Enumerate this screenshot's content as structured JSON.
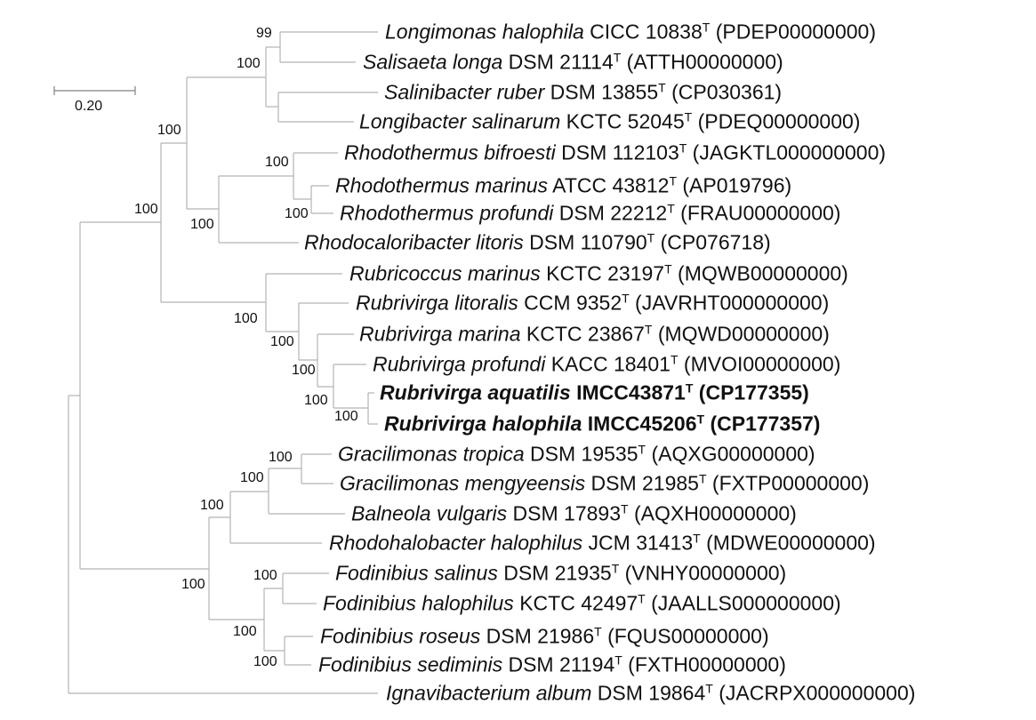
{
  "tree": {
    "scale_bar_label": "0.20",
    "branch_color": "#b4b4b4",
    "taxa": [
      {
        "id": "longimonas",
        "species": "Longimonas halophila",
        "strain": "CICC 10838",
        "type_mark": "T",
        "accession": "(PDEP00000000)",
        "bold": false
      },
      {
        "id": "salisaeta",
        "species": "Salisaeta longa",
        "strain": "DSM 21114",
        "type_mark": "T",
        "accession": "(ATTH00000000)",
        "bold": false
      },
      {
        "id": "salinibacter",
        "species": "Salinibacter ruber",
        "strain": "DSM 13855",
        "type_mark": "T",
        "accession": "(CP030361)",
        "bold": false
      },
      {
        "id": "longibacter",
        "species": "Longibacter salinarum",
        "strain": "KCTC 52045",
        "type_mark": "T",
        "accession": "(PDEQ00000000)",
        "bold": false
      },
      {
        "id": "rho-bifroesti",
        "species": "Rhodothermus bifroesti",
        "strain": "DSM 112103",
        "type_mark": "T",
        "accession": "(JAGKTL000000000)",
        "bold": false
      },
      {
        "id": "rho-marinus",
        "species": "Rhodothermus marinus",
        "strain": "ATCC 43812",
        "type_mark": "T",
        "accession": "(AP019796)",
        "bold": false
      },
      {
        "id": "rho-profundi",
        "species": "Rhodothermus profundi",
        "strain": "DSM 22212",
        "type_mark": "T",
        "accession": "(FRAU00000000)",
        "bold": false
      },
      {
        "id": "rhodocaloribacter",
        "species": "Rhodocaloribacter litoris",
        "strain": "DSM 110790",
        "type_mark": "T",
        "accession": "(CP076718)",
        "bold": false
      },
      {
        "id": "rubricoccus",
        "species": "Rubricoccus marinus",
        "strain": "KCTC 23197",
        "type_mark": "T",
        "accession": "(MQWB00000000)",
        "bold": false
      },
      {
        "id": "rub-litoralis",
        "species": "Rubrivirga litoralis",
        "strain": "CCM 9352",
        "type_mark": "T",
        "accession": "(JAVRHT000000000)",
        "bold": false
      },
      {
        "id": "rub-marina",
        "species": "Rubrivirga marina",
        "strain": "KCTC 23867",
        "type_mark": "T",
        "accession": "(MQWD00000000)",
        "bold": false
      },
      {
        "id": "rub-profundi",
        "species": "Rubrivirga profundi",
        "strain": "KACC 18401",
        "type_mark": "T",
        "accession": "(MVOI00000000)",
        "bold": false
      },
      {
        "id": "rub-aquatilis",
        "species": "Rubrivirga aquatilis",
        "strain": "IMCC43871",
        "type_mark": "T",
        "accession": "(CP177355)",
        "bold": true
      },
      {
        "id": "rub-halophila",
        "species": "Rubrivirga halophila",
        "strain": "IMCC45206",
        "type_mark": "T",
        "accession": "(CP177357)",
        "bold": true
      },
      {
        "id": "grac-tropica",
        "species": "Gracilimonas tropica",
        "strain": "DSM 19535",
        "type_mark": "T",
        "accession": "(AQXG00000000)",
        "bold": false
      },
      {
        "id": "grac-mengyeensis",
        "species": "Gracilimonas mengyeensis",
        "strain": "DSM 21985",
        "type_mark": "T",
        "accession": "(FXTP00000000)",
        "bold": false
      },
      {
        "id": "balneola",
        "species": "Balneola vulgaris",
        "strain": "DSM 17893",
        "type_mark": "T",
        "accession": "(AQXH00000000)",
        "bold": false
      },
      {
        "id": "rhodohalobacter",
        "species": "Rhodohalobacter halophilus",
        "strain": "JCM 31413",
        "type_mark": "T",
        "accession": "(MDWE00000000)",
        "bold": false
      },
      {
        "id": "fod-salinus",
        "species": "Fodinibius salinus",
        "strain": "DSM 21935",
        "type_mark": "T",
        "accession": "(VNHY00000000)",
        "bold": false
      },
      {
        "id": "fod-halophilus",
        "species": "Fodinibius halophilus",
        "strain": "KCTC 42497",
        "type_mark": "T",
        "accession": "(JAALLS000000000)",
        "bold": false
      },
      {
        "id": "fod-roseus",
        "species": "Fodinibius roseus",
        "strain": "DSM 21986",
        "type_mark": "T",
        "accession": "(FQUS00000000)",
        "bold": false
      },
      {
        "id": "fod-sediminis",
        "species": "Fodinibius sediminis",
        "strain": "DSM 21194",
        "type_mark": "T",
        "accession": "(FXTH00000000)",
        "bold": false
      },
      {
        "id": "ignavibacterium",
        "species": "Ignavibacterium album",
        "strain": "DSM 19864",
        "type_mark": "T",
        "accession": "(JACRPX000000000)",
        "bold": false
      }
    ],
    "bootstrap": [
      {
        "node": "longimonas-salisaeta",
        "value": "99"
      },
      {
        "node": "salinibacter-group",
        "value": "100"
      },
      {
        "node": "salinibacteraceae-core",
        "value": "100"
      },
      {
        "node": "rhodothermus-group",
        "value": "100"
      },
      {
        "node": "rhodothermus-marinus-profundi",
        "value": "100"
      },
      {
        "node": "rhodothermaceae",
        "value": "100"
      },
      {
        "node": "rhodothermales",
        "value": "100"
      },
      {
        "node": "rubrivirga-rubricoccus",
        "value": "100"
      },
      {
        "node": "rubrivirga",
        "value": "100"
      },
      {
        "node": "rubrivirga-marina-clade",
        "value": "100"
      },
      {
        "node": "rubrivirga-profundi-clade",
        "value": "100"
      },
      {
        "node": "rubrivirga-new-species",
        "value": "100"
      },
      {
        "node": "gracilimonas",
        "value": "100"
      },
      {
        "node": "gracilimonas-balneola",
        "value": "100"
      },
      {
        "node": "balneolaceae-upper",
        "value": "100"
      },
      {
        "node": "balneolaceae",
        "value": "100"
      },
      {
        "node": "fodinibius-salinus-halophilus",
        "value": "100"
      },
      {
        "node": "fodinibius",
        "value": "100"
      },
      {
        "node": "fodinibius-roseus-sediminis",
        "value": "100"
      }
    ]
  }
}
